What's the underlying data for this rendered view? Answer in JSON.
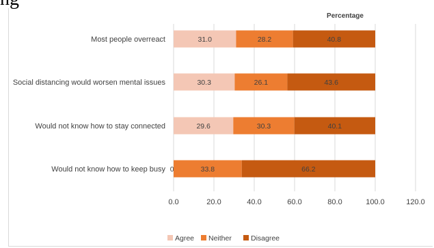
{
  "heading_fragment": "ng",
  "chart_data": {
    "type": "bar",
    "stacked": true,
    "orientation": "horizontal",
    "title": "Percentage",
    "categories": [
      "Most people overreact",
      "Social distancing would worsen mental issues",
      "Would not know how to stay connected",
      "Would not know how to keep busy"
    ],
    "series": [
      {
        "name": "Agree",
        "color": "#f4c7b5",
        "values": [
          31.0,
          30.3,
          29.6,
          0.0
        ]
      },
      {
        "name": "Neither",
        "color": "#ed7d31",
        "values": [
          28.2,
          26.1,
          30.3,
          33.8
        ]
      },
      {
        "name": "Disagree",
        "color": "#c55a11",
        "values": [
          40.8,
          43.6,
          40.1,
          66.2
        ]
      }
    ],
    "value_labels": [
      [
        "31.0",
        "28.2",
        "40.8"
      ],
      [
        "30.3",
        "26.1",
        "43.6"
      ],
      [
        "29.6",
        "30.3",
        "40.1"
      ],
      [
        "0.0",
        "33.8",
        "66.2"
      ]
    ],
    "xlim": [
      0,
      120
    ],
    "x_ticks": [
      "0.0",
      "20.0",
      "40.0",
      "60.0",
      "80.0",
      "100.0",
      "120.0"
    ],
    "x_tick_values": [
      0,
      20,
      40,
      60,
      80,
      100,
      120
    ],
    "grid": "vertical",
    "legend_position": "bottom"
  }
}
